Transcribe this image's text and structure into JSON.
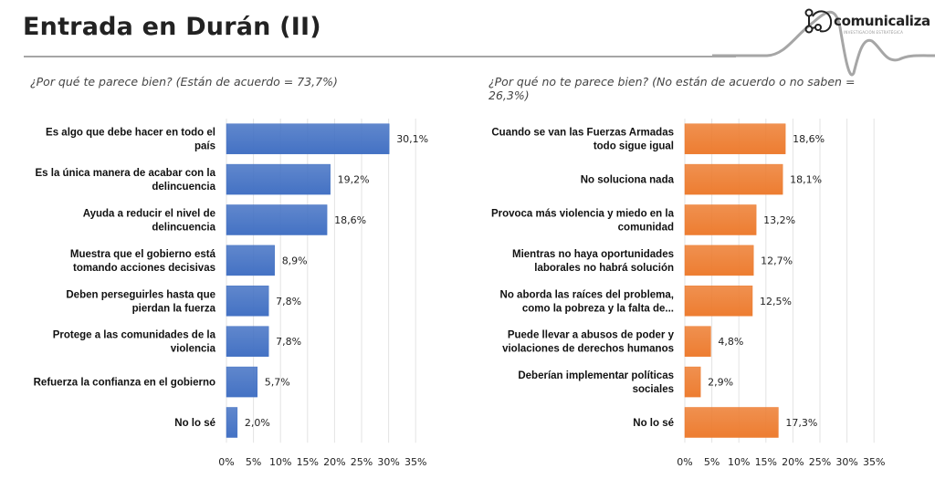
{
  "header": {
    "title": "Entrada en Durán (II)",
    "logo_text": "comunicaliza",
    "logo_subtext": "INVESTIGACIÓN ESTRATÉGICA"
  },
  "colors": {
    "left_bar": "#4472c4",
    "right_bar": "#ed7d31",
    "rule": "#a6a6a6"
  },
  "chart_data": [
    {
      "type": "bar",
      "orientation": "horizontal",
      "title": "¿Por qué te parece bien? (Están de acuerdo = 73,7%)",
      "categories": [
        [
          "Es algo que debe hacer en todo el",
          "país"
        ],
        [
          "Es la única manera de acabar con la",
          "delincuencia"
        ],
        [
          "Ayuda a reducir el nivel de",
          "delincuencia"
        ],
        [
          "Muestra que el gobierno está",
          "tomando acciones decisivas"
        ],
        [
          "Deben perseguirles hasta que",
          "pierdan la fuerza"
        ],
        [
          "Protege a las comunidades de la",
          "violencia"
        ],
        [
          "Refuerza la confianza en el gobierno"
        ],
        [
          "No lo sé"
        ]
      ],
      "values": [
        30.1,
        19.2,
        18.6,
        8.9,
        7.8,
        7.8,
        5.7,
        2.0
      ],
      "value_labels": [
        "30,1%",
        "19,2%",
        "18,6%",
        "8,9%",
        "7,8%",
        "7,8%",
        "5,7%",
        "2,0%"
      ],
      "xlim": [
        0,
        35
      ],
      "xticks": [
        0,
        5,
        10,
        15,
        20,
        25,
        30,
        35
      ],
      "xtick_labels": [
        "0%",
        "5%",
        "10%",
        "15%",
        "20%",
        "25%",
        "30%",
        "35%"
      ],
      "grid": true,
      "legend": "none",
      "color": "#4472c4"
    },
    {
      "type": "bar",
      "orientation": "horizontal",
      "title": "¿Por qué no te parece bien? (No están de acuerdo o no saben = 26,3%)",
      "categories": [
        [
          "Cuando se van las Fuerzas Armadas",
          "todo sigue igual"
        ],
        [
          "No soluciona nada"
        ],
        [
          "Provoca más violencia y miedo en la",
          "comunidad"
        ],
        [
          "Mientras no haya oportunidades",
          "laborales no habrá solución"
        ],
        [
          "No aborda las raíces del problema,",
          "como la pobreza y la falta de..."
        ],
        [
          "Puede llevar a abusos de poder y",
          "violaciones de derechos humanos"
        ],
        [
          "Deberían implementar políticas",
          "sociales"
        ],
        [
          "No lo sé"
        ]
      ],
      "values": [
        18.6,
        18.1,
        13.2,
        12.7,
        12.5,
        4.8,
        2.9,
        17.3
      ],
      "value_labels": [
        "18,6%",
        "18,1%",
        "13,2%",
        "12,7%",
        "12,5%",
        "4,8%",
        "2,9%",
        "17,3%"
      ],
      "xlim": [
        0,
        35
      ],
      "xticks": [
        0,
        5,
        10,
        15,
        20,
        25,
        30,
        35
      ],
      "xtick_labels": [
        "0%",
        "5%",
        "10%",
        "15%",
        "20%",
        "25%",
        "30%",
        "35%"
      ],
      "grid": true,
      "legend": "none",
      "color": "#ed7d31"
    }
  ]
}
